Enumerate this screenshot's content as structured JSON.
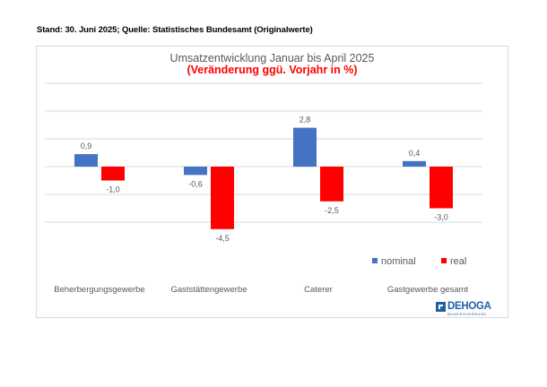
{
  "header": "Stand: 30. Juni 2025; Quelle: Statistisches Bundesamt (Originalwerte)",
  "logo": {
    "name": "DEHOGA",
    "subtitle": "BUNDESVERBAND"
  },
  "colors": {
    "nominal": "#4472c4",
    "real": "#ff0000",
    "title": "#595959",
    "subtitle": "#ff0000",
    "grid": "#d9d9d9",
    "text": "#595959"
  },
  "chart_data": {
    "type": "bar",
    "title": "Umsatzentwicklung Januar bis April 2025",
    "subtitle": "(Veränderung ggü. Vorjahr in %)",
    "categories": [
      "Beherbergungsgewerbe",
      "Gaststättengewerbe",
      "Caterer",
      "Gastgewerbe gesamt"
    ],
    "series": [
      {
        "name": "nominal",
        "values": [
          0.9,
          -0.6,
          2.8,
          0.4
        ],
        "labels": [
          "0,9",
          "-0,6",
          "2,8",
          "0,4"
        ]
      },
      {
        "name": "real",
        "values": [
          -1.0,
          -4.5,
          -2.5,
          -3.0
        ],
        "labels": [
          "-1,0",
          "-4,5",
          "-2,5",
          "-3,0"
        ]
      }
    ],
    "ylim": [
      -4.5,
      6
    ],
    "legend": "bottom-right",
    "grid": true,
    "xlabel": "",
    "ylabel": ""
  }
}
